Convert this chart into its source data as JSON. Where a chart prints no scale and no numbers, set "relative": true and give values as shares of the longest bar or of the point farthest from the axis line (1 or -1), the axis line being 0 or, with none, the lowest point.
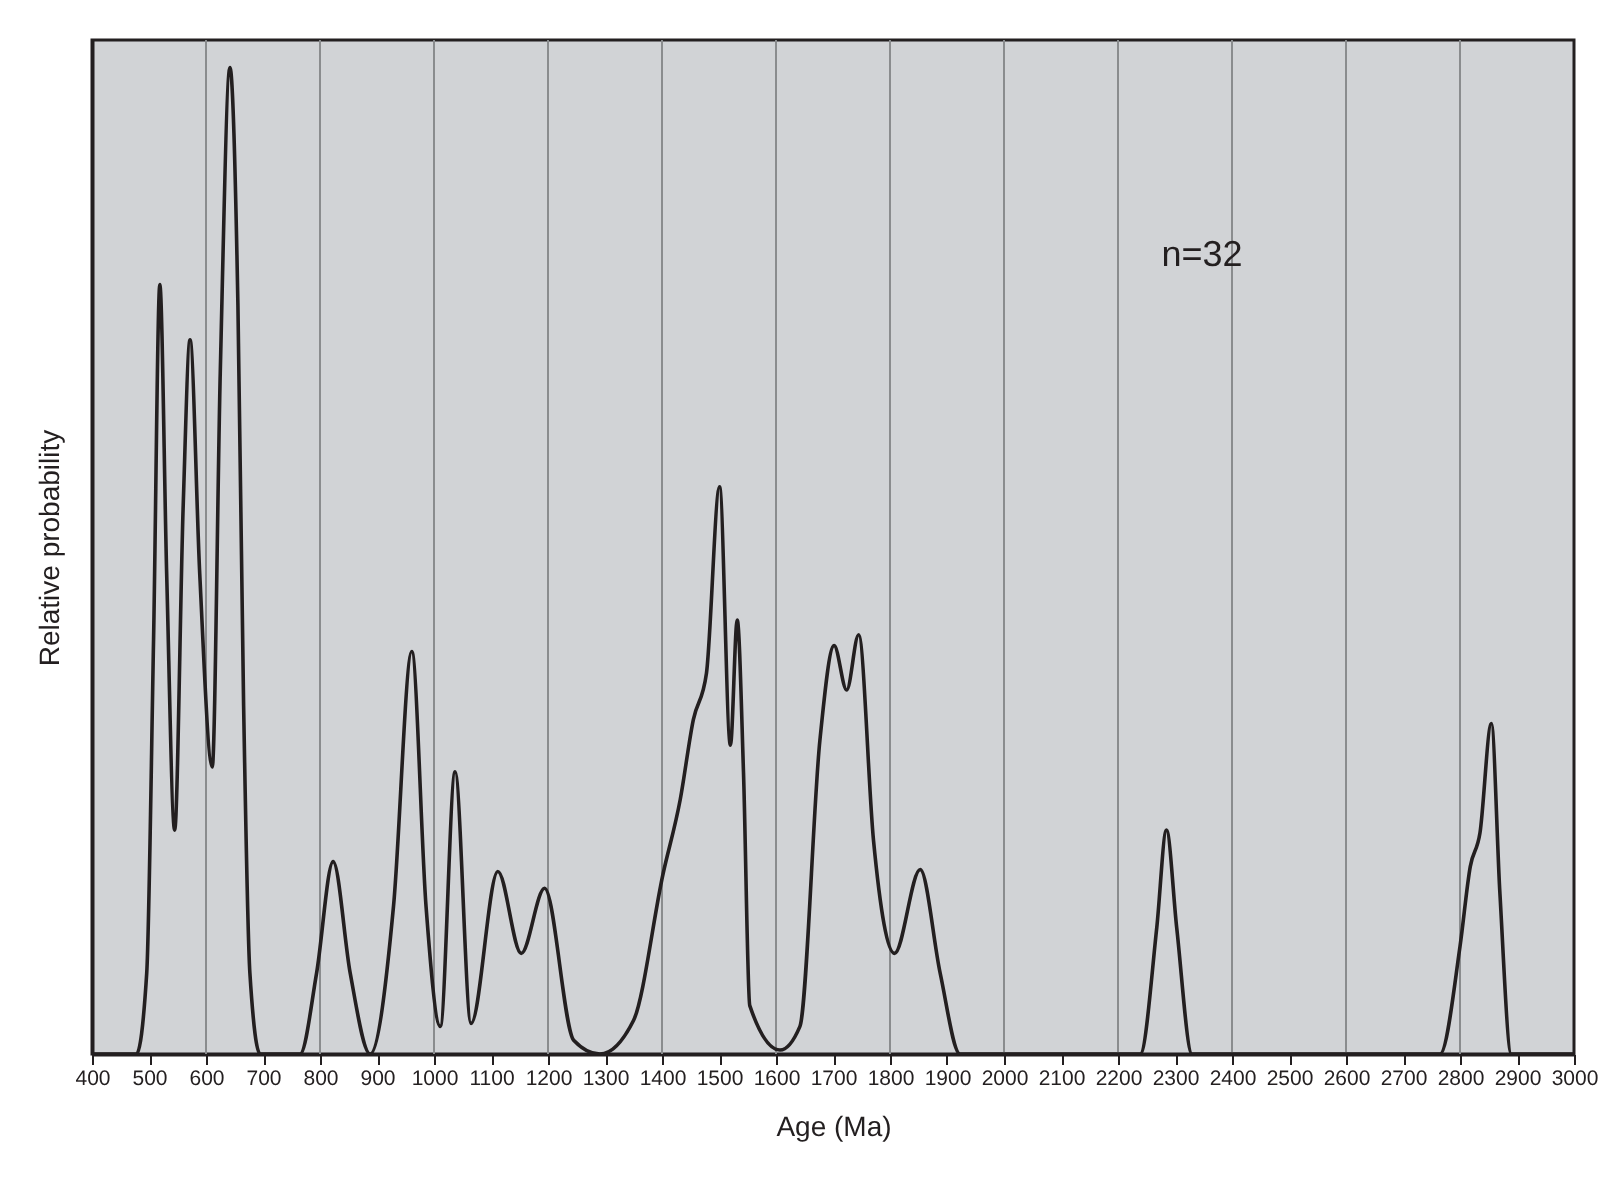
{
  "chart_data": {
    "type": "line",
    "xlabel": "Age (Ma)",
    "ylabel": "Relative probability",
    "relative": true,
    "annotations": [
      "n=32"
    ],
    "xlim": [
      400,
      3000
    ],
    "xticks": [
      400,
      500,
      600,
      700,
      800,
      900,
      1000,
      1100,
      1200,
      1300,
      1400,
      1500,
      1600,
      1700,
      1800,
      1900,
      2000,
      2100,
      2200,
      2300,
      2400,
      2500,
      2600,
      2700,
      2800,
      2900,
      3000
    ],
    "grid": "x",
    "series": [
      {
        "color": "#231f20",
        "x": [
          400,
          478,
          496,
          508,
          519,
          531,
          545,
          560,
          572,
          589,
          611,
          625,
          642,
          656,
          666,
          677,
          695,
          765,
          794,
          823,
          853,
          888,
          929,
          961,
          986,
          1011,
          1037,
          1065,
          1112,
          1153,
          1194,
          1245,
          1291,
          1350,
          1402,
          1432,
          1455,
          1478,
          1501,
          1520,
          1532,
          1543,
          1554,
          1607,
          1642,
          1677,
          1702,
          1724,
          1745,
          1771,
          1808,
          1853,
          1888,
          1923,
          2239,
          2268,
          2285,
          2303,
          2330,
          2765,
          2800,
          2818,
          2835,
          2855,
          2870,
          2890,
          3000
        ],
        "values": [
          0,
          0,
          0.082,
          0.42,
          0.78,
          0.487,
          0.227,
          0.556,
          0.724,
          0.487,
          0.291,
          0.69,
          1,
          0.759,
          0.353,
          0.082,
          0,
          0,
          0.082,
          0.195,
          0.082,
          0,
          0.15,
          0.408,
          0.15,
          0.028,
          0.286,
          0.031,
          0.185,
          0.102,
          0.168,
          0.014,
          0,
          0.034,
          0.183,
          0.258,
          0.339,
          0.386,
          0.575,
          0.313,
          0.44,
          0.285,
          0.049,
          0.004,
          0.028,
          0.318,
          0.414,
          0.369,
          0.425,
          0.217,
          0.102,
          0.187,
          0.082,
          0,
          0,
          0.128,
          0.227,
          0.128,
          0,
          0,
          0.109,
          0.19,
          0.224,
          0.335,
          0.163,
          0,
          0
        ]
      }
    ]
  }
}
